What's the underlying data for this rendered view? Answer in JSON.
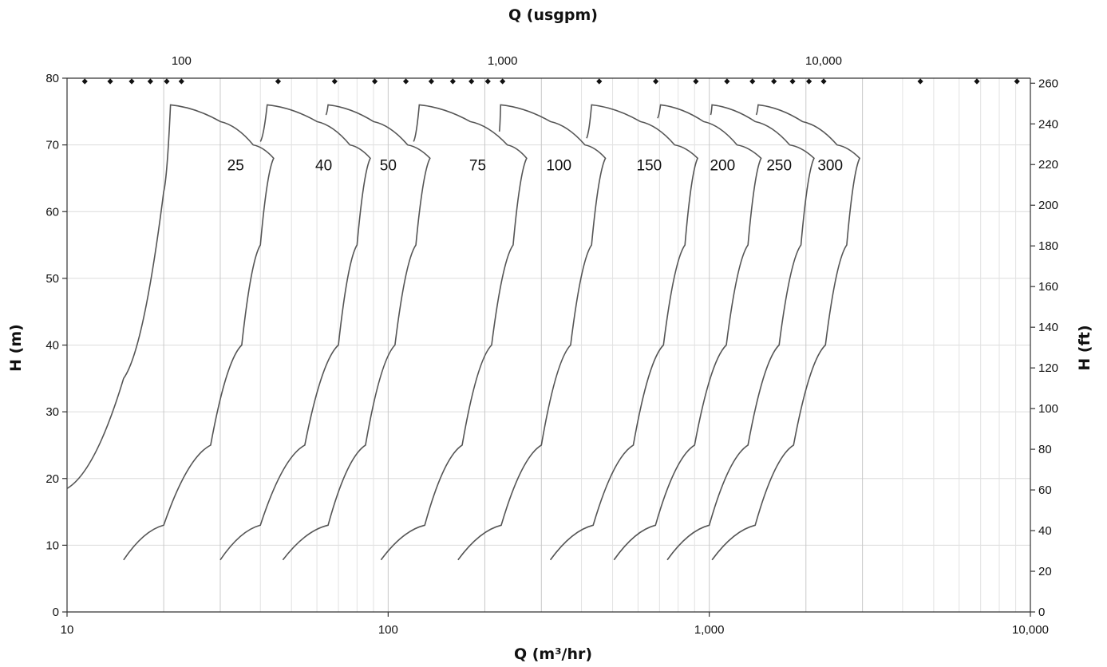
{
  "chart_data": {
    "type": "line",
    "title": "",
    "xlabel_bottom": "Q (m³/hr)",
    "xlabel_top": "Q (usgpm)",
    "ylabel_left": "H (m)",
    "ylabel_right": "H (ft)",
    "x_scale": "log",
    "xlim": [
      10,
      10000
    ],
    "ylim": [
      0,
      80
    ],
    "x_ticks": [
      10,
      100,
      1000,
      10000
    ],
    "x_tick_labels": [
      "10",
      "100",
      "1,000",
      "10,000"
    ],
    "y_ticks": [
      0,
      10,
      20,
      30,
      40,
      50,
      60,
      70,
      80
    ],
    "y_tick_labels": [
      "0",
      "10",
      "20",
      "30",
      "40",
      "50",
      "60",
      "70",
      "80"
    ],
    "y_right_ticks_ft": [
      0,
      20,
      40,
      60,
      80,
      100,
      120,
      140,
      160,
      180,
      200,
      220,
      240,
      260
    ],
    "y_right_tick_labels": [
      "0",
      "20",
      "40",
      "60",
      "80",
      "100",
      "120",
      "140",
      "160",
      "180",
      "200",
      "220",
      "240",
      "260"
    ],
    "top_ticks_usgpm": [
      100,
      1000,
      10000
    ],
    "top_tick_labels": [
      "100",
      "1,000",
      "10,000"
    ],
    "top_marker_usgpm": [
      50,
      60,
      70,
      80,
      90,
      100,
      200,
      300,
      400,
      500,
      600,
      700,
      800,
      900,
      1000,
      2000,
      3000,
      4000,
      5000,
      6000,
      7000,
      8000,
      9000,
      10000,
      20000,
      30000,
      40000
    ],
    "grid": true,
    "legend": "none",
    "series": [
      {
        "name": "25",
        "x": [
          10.0,
          15.0,
          20.0,
          21.0,
          30.0,
          38.0,
          44.0,
          40.0,
          35.0,
          28.0,
          20.0,
          15.0
        ],
        "y": [
          18.5,
          35.0,
          63.0,
          76.0,
          73.5,
          70.0,
          68.0,
          55.0,
          40.0,
          25.0,
          13.0,
          7.8
        ],
        "label_at": [
          33.5,
          67.0
        ]
      },
      {
        "name": "40",
        "x": [
          40.0,
          42.0,
          60.0,
          76.0,
          88.0,
          80.0,
          70.0,
          55.0,
          40.0,
          30.0
        ],
        "y": [
          70.5,
          76.0,
          73.5,
          70.0,
          68.0,
          55.0,
          40.0,
          25.0,
          13.0,
          7.8
        ],
        "label_at": [
          63.0,
          67.0
        ]
      },
      {
        "name": "50",
        "x": [
          64.0,
          65.0,
          90.0,
          115.0,
          135.0,
          122.0,
          105.0,
          85.0,
          65.0,
          47.0
        ],
        "y": [
          74.5,
          76.0,
          73.5,
          70.0,
          68.0,
          55.0,
          40.0,
          25.0,
          13.0,
          7.8
        ],
        "label_at": [
          100.0,
          67.0
        ]
      },
      {
        "name": "75",
        "x": [
          120.0,
          125.0,
          180.0,
          235.0,
          270.0,
          245.0,
          210.0,
          170.0,
          130.0,
          95.0
        ],
        "y": [
          70.5,
          76.0,
          73.5,
          70.0,
          68.0,
          55.0,
          40.0,
          25.0,
          13.0,
          7.8
        ],
        "label_at": [
          190.0,
          67.0
        ]
      },
      {
        "name": "100",
        "x": [
          222.0,
          224.0,
          320.0,
          410.0,
          475.0,
          430.0,
          370.0,
          300.0,
          225.0,
          165.0
        ],
        "y": [
          72.0,
          76.0,
          73.5,
          70.0,
          68.0,
          55.0,
          40.0,
          25.0,
          13.0,
          7.8
        ],
        "label_at": [
          340.0,
          67.0
        ]
      },
      {
        "name": "150",
        "x": [
          415.0,
          430.0,
          610.0,
          780.0,
          920.0,
          840.0,
          720.0,
          580.0,
          435.0,
          320.0
        ],
        "y": [
          71.0,
          76.0,
          73.5,
          70.0,
          68.0,
          55.0,
          40.0,
          25.0,
          13.0,
          7.8
        ],
        "label_at": [
          650.0,
          67.0
        ]
      },
      {
        "name": "200",
        "x": [
          690.0,
          705.0,
          960.0,
          1220.0,
          1450.0,
          1320.0,
          1130.0,
          900.0,
          680.0,
          505.0
        ],
        "y": [
          74.0,
          76.0,
          73.5,
          70.0,
          68.0,
          55.0,
          40.0,
          25.0,
          13.0,
          7.8
        ],
        "label_at": [
          1100.0,
          67.0
        ]
      },
      {
        "name": "250",
        "x": [
          1010.0,
          1020.0,
          1390.0,
          1780.0,
          2120.0,
          1930.0,
          1650.0,
          1320.0,
          1000.0,
          740.0
        ],
        "y": [
          74.5,
          76.0,
          73.5,
          70.0,
          68.0,
          55.0,
          40.0,
          25.0,
          13.0,
          7.8
        ],
        "label_at": [
          1650.0,
          67.0
        ]
      },
      {
        "name": "300",
        "x": [
          1400.0,
          1420.0,
          1950.0,
          2500.0,
          2940.0,
          2680.0,
          2300.0,
          1830.0,
          1390.0,
          1020.0
        ],
        "y": [
          74.5,
          76.0,
          73.5,
          70.0,
          68.0,
          55.0,
          40.0,
          25.0,
          13.0,
          7.8
        ],
        "label_at": [
          2380.0,
          67.0
        ]
      }
    ]
  }
}
